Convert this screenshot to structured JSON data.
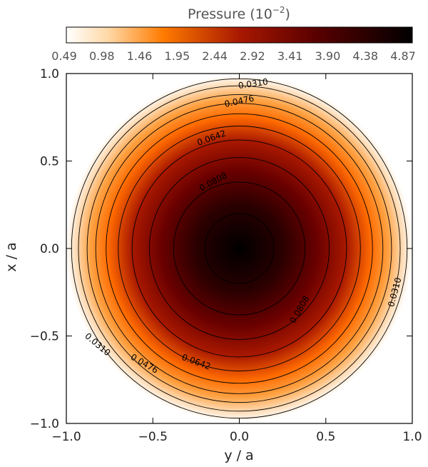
{
  "chart_data": {
    "type": "heatmap",
    "title": "Pressure (10",
    "title_exponent": "−2",
    "title_suffix": ")",
    "xlabel": "y / a",
    "ylabel": "x / a",
    "xlim": [
      -1.0,
      1.0
    ],
    "ylim": [
      -1.0,
      1.0
    ],
    "xticks": [
      -1.0,
      -0.5,
      0.0,
      0.5,
      1.0
    ],
    "xtick_labels": [
      "−1.0",
      "−0.5",
      "0.0",
      "0.5",
      "1.0"
    ],
    "yticks": [
      -1.0,
      -0.5,
      0.0,
      0.5,
      1.0
    ],
    "ytick_labels": [
      "−1.0",
      "−0.5",
      "0.0",
      "0.5",
      "1.0"
    ],
    "colorbar": {
      "range": [
        0.49,
        4.87
      ],
      "tick_labels": [
        "0.49",
        "0.98",
        "1.46",
        "1.95",
        "2.44",
        "2.92",
        "3.41",
        "3.90",
        "4.38",
        "4.87"
      ],
      "colors": [
        "#ffffff",
        "#ff7b00",
        "#8a0000",
        "#000000"
      ]
    },
    "contours": {
      "radii": [
        0.2,
        0.38,
        0.52,
        0.62,
        0.7,
        0.77,
        0.83,
        0.88,
        0.93,
        0.97
      ],
      "labels": [
        {
          "text": "0.0310",
          "x": 0.08,
          "y": 0.94,
          "angle": -8
        },
        {
          "text": "0.0476",
          "x": 0.0,
          "y": 0.84,
          "angle": -12
        },
        {
          "text": "0.0642",
          "x": -0.16,
          "y": 0.63,
          "angle": -20
        },
        {
          "text": "0.0808",
          "x": -0.15,
          "y": 0.38,
          "angle": -28
        },
        {
          "text": "0.0310",
          "x": 0.9,
          "y": -0.25,
          "angle": -75
        },
        {
          "text": "0.0808",
          "x": 0.35,
          "y": -0.35,
          "angle": -60
        },
        {
          "text": "0.0310",
          "x": -0.82,
          "y": -0.55,
          "angle": 40
        },
        {
          "text": "0.0476",
          "x": -0.55,
          "y": -0.66,
          "angle": 30
        },
        {
          "text": "0.0642",
          "x": -0.25,
          "y": -0.65,
          "angle": 20
        }
      ]
    }
  }
}
